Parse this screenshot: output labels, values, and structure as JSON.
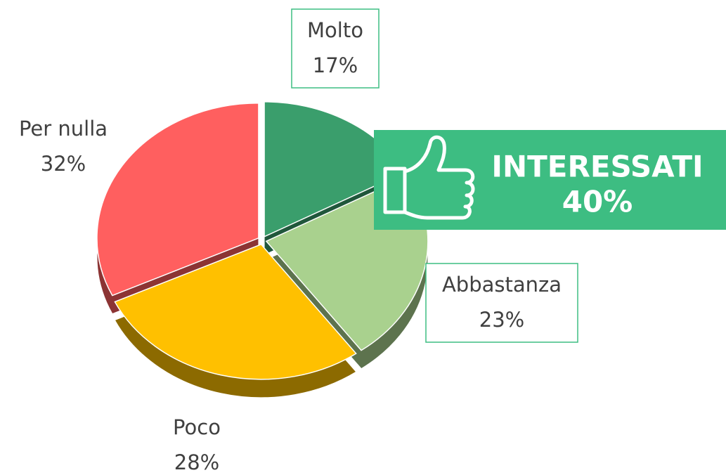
{
  "chart_data": {
    "type": "pie",
    "categories": [
      "Molto",
      "Abbastanza",
      "Poco",
      "Per nulla"
    ],
    "values": [
      17,
      23,
      28,
      32
    ],
    "value_labels": [
      "17%",
      "23%",
      "28%",
      "32%"
    ],
    "colors": [
      "#3a9e6c",
      "#a9d18e",
      "#ffc000",
      "#ff5f5f"
    ],
    "callout": {
      "title": "INTERESSATI",
      "value_label": "40%"
    }
  }
}
